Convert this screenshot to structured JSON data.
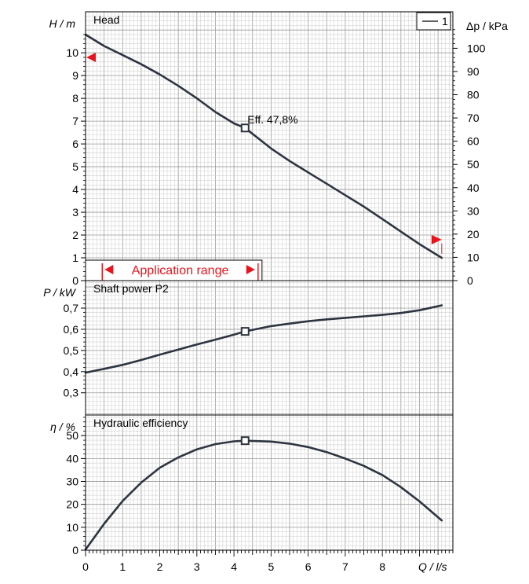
{
  "colors": {
    "curve": "#2d3540",
    "grid_minor": "#d2d2d2",
    "grid_major": "#9a9a9a",
    "frame": "#000000",
    "marker": "#e8141c"
  },
  "legend": {
    "label": "1"
  },
  "chart_data": [
    {
      "type": "line",
      "id": "head",
      "title": "Head",
      "ylabel": "H / m",
      "y2label": "Δp / kPa",
      "xlim": [
        0,
        9.9
      ],
      "ylim": [
        0,
        11.8
      ],
      "y2lim": [
        0,
        115.7
      ],
      "yticks": [
        0,
        1,
        2,
        3,
        4,
        5,
        6,
        7,
        8,
        9,
        10
      ],
      "ytick_labels": [
        "0",
        "1",
        "2",
        "3",
        "4",
        "5",
        "6",
        "7",
        "8",
        "9",
        "10"
      ],
      "y2ticks": [
        0,
        10,
        20,
        30,
        40,
        50,
        60,
        70,
        80,
        90,
        100
      ],
      "y2tick_labels": [
        "0",
        "10",
        "20",
        "30",
        "40",
        "50",
        "60",
        "70",
        "80",
        "90",
        "100"
      ],
      "series": [
        {
          "name": "1",
          "x": [
            0,
            0.5,
            1,
            1.5,
            2,
            2.5,
            3,
            3.5,
            4,
            4.3,
            5,
            5.5,
            6,
            6.5,
            7,
            7.5,
            8,
            8.5,
            9,
            9.6
          ],
          "y": [
            10.8,
            10.3,
            9.9,
            9.5,
            9.05,
            8.55,
            8.0,
            7.4,
            6.9,
            6.7,
            5.8,
            5.25,
            4.75,
            4.25,
            3.75,
            3.25,
            2.7,
            2.15,
            1.6,
            1.0
          ]
        }
      ],
      "operating_point": {
        "x": 4.3,
        "y": 6.7,
        "label": "Eff.  47,8%"
      },
      "application_range": {
        "label": "Application range",
        "from": 0.45,
        "to": 4.65
      },
      "range_markers": [
        {
          "x": 0,
          "y": 9.8
        },
        {
          "x": 9.6,
          "y": 1.8
        }
      ]
    },
    {
      "type": "line",
      "id": "power",
      "title": "Shaft power P2",
      "ylabel": "P  / kW",
      "xlim": [
        0,
        9.9
      ],
      "ylim": [
        0.195,
        0.83
      ],
      "yticks": [
        0.3,
        0.4,
        0.5,
        0.6,
        0.7
      ],
      "ytick_labels": [
        "0,3",
        "0,4",
        "0,5",
        "0,6",
        "0,7"
      ],
      "series": [
        {
          "name": "1",
          "x": [
            0,
            0.5,
            1,
            1.5,
            2,
            2.5,
            3,
            3.5,
            4,
            4.3,
            5,
            5.5,
            6,
            6.5,
            7,
            7.5,
            8,
            8.5,
            9,
            9.6
          ],
          "y": [
            0.395,
            0.413,
            0.432,
            0.455,
            0.48,
            0.504,
            0.528,
            0.551,
            0.575,
            0.59,
            0.615,
            0.627,
            0.638,
            0.647,
            0.654,
            0.661,
            0.668,
            0.677,
            0.69,
            0.713
          ]
        }
      ],
      "operating_point": {
        "x": 4.3,
        "y": 0.59
      }
    },
    {
      "type": "line",
      "id": "efficiency",
      "title": "Hydraulic efficiency",
      "ylabel": "η / %",
      "xlabel": "Q / l/s",
      "xlim": [
        0,
        9.9
      ],
      "ylim": [
        0,
        59
      ],
      "yticks": [
        0,
        10,
        20,
        30,
        40,
        50
      ],
      "ytick_labels": [
        "0",
        "10",
        "20",
        "30",
        "40",
        "50"
      ],
      "xticks": [
        0,
        1,
        2,
        3,
        4,
        5,
        6,
        7,
        8
      ],
      "xtick_labels": [
        "0",
        "1",
        "2",
        "3",
        "4",
        "5",
        "6",
        "7",
        "8"
      ],
      "series": [
        {
          "name": "1",
          "x": [
            0,
            0.5,
            1,
            1.5,
            2,
            2.5,
            3,
            3.5,
            4,
            4.3,
            5,
            5.5,
            6,
            6.5,
            7,
            7.5,
            8,
            8.5,
            9,
            9.6
          ],
          "y": [
            0.3,
            11.5,
            21.5,
            29.5,
            36.0,
            40.5,
            44.0,
            46.3,
            47.5,
            47.8,
            47.4,
            46.5,
            45.0,
            42.8,
            40.0,
            36.8,
            32.8,
            27.5,
            21.3,
            13.0
          ]
        }
      ],
      "operating_point": {
        "x": 4.3,
        "y": 47.8
      }
    }
  ]
}
